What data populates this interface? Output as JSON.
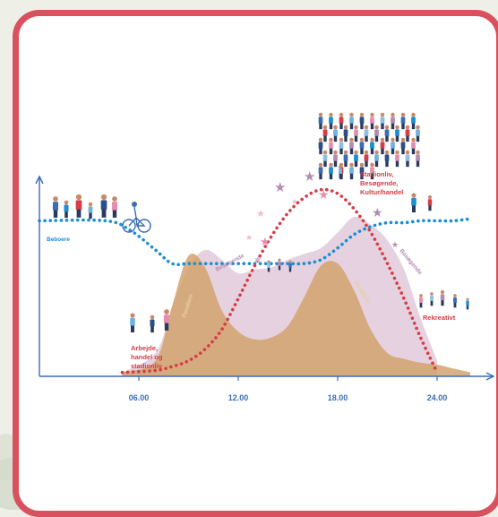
{
  "chart_data": {
    "type": "area",
    "title": "",
    "xlabel": "",
    "ylabel": "",
    "xlim": [
      0,
      27
    ],
    "ylim": [
      0,
      100
    ],
    "x_ticks": [
      "06.00",
      "12.00",
      "18.00",
      "24.00"
    ],
    "grid": false,
    "series": [
      {
        "name": "Besøgende",
        "style": "filled-area",
        "color": "#dcc2d4",
        "x": [
          5,
          7,
          8,
          9,
          10,
          11,
          12,
          13,
          14,
          15,
          16,
          17,
          18,
          19,
          20,
          21,
          22,
          23,
          24
        ],
        "y": [
          2,
          12,
          35,
          56,
          65,
          60,
          53,
          55,
          56,
          60,
          63,
          66,
          74,
          82,
          78,
          70,
          55,
          30,
          8
        ]
      },
      {
        "name": "Pendlere",
        "style": "filled-area",
        "color": "#d4a36f",
        "x": [
          5,
          7,
          8,
          9,
          10,
          11,
          12,
          13,
          14,
          15,
          16,
          17,
          18,
          19,
          20,
          21,
          22,
          23,
          24,
          25,
          26
        ],
        "y": [
          2,
          8,
          36,
          62,
          56,
          34,
          23,
          19,
          20,
          26,
          41,
          57,
          58,
          44,
          24,
          12,
          9,
          7,
          6,
          4,
          2
        ]
      },
      {
        "name": "Beboere",
        "style": "dotted-line",
        "color": "#1a8fd4",
        "x": [
          0,
          4,
          5.5,
          7,
          8,
          9,
          10,
          11,
          12,
          13,
          14,
          15,
          16,
          17,
          18,
          19,
          20,
          21,
          22,
          23,
          24,
          25,
          26
        ],
        "y": [
          80,
          80,
          75,
          65,
          58,
          58,
          58,
          58,
          58,
          58,
          58,
          58,
          58,
          60,
          66,
          73,
          77,
          79,
          79,
          80,
          80,
          80,
          81
        ]
      },
      {
        "name": "Stadionliv",
        "style": "dotted-line",
        "color": "#d63d47",
        "x": [
          5,
          7,
          8,
          9,
          10,
          11,
          12,
          13,
          14,
          15,
          16,
          17,
          18,
          19,
          20,
          21,
          22,
          23,
          24
        ],
        "y": [
          2,
          3,
          5,
          8,
          14,
          24,
          40,
          57,
          72,
          84,
          92,
          96,
          94,
          86,
          74,
          58,
          40,
          20,
          2
        ]
      }
    ],
    "annotations": [
      "Stadionliv,",
      "Besøgende,",
      "Kultur/handel",
      "Arbejde,",
      "handel og",
      "stadionliv",
      "Rekreativt"
    ],
    "legend": "inline-labels"
  },
  "labels": {
    "residents": "Beboere",
    "visitors": "Besøgende",
    "commuters_left": "Pendlere",
    "commuters_right": "Pendlere",
    "visitors_right": "Besøgende"
  },
  "colors": {
    "frame": "#d9515e",
    "axis": "#3b6db3",
    "residents": "#1a8fd4",
    "stadium": "#d63d47",
    "visitors_fill": "#dcc2d4",
    "commuters_fill": "#d4a36f",
    "stars": "#b58bb0"
  },
  "icons": [
    "crowd-illustration",
    "family-group-illustration",
    "cyclist-illustration",
    "star-icon"
  ]
}
